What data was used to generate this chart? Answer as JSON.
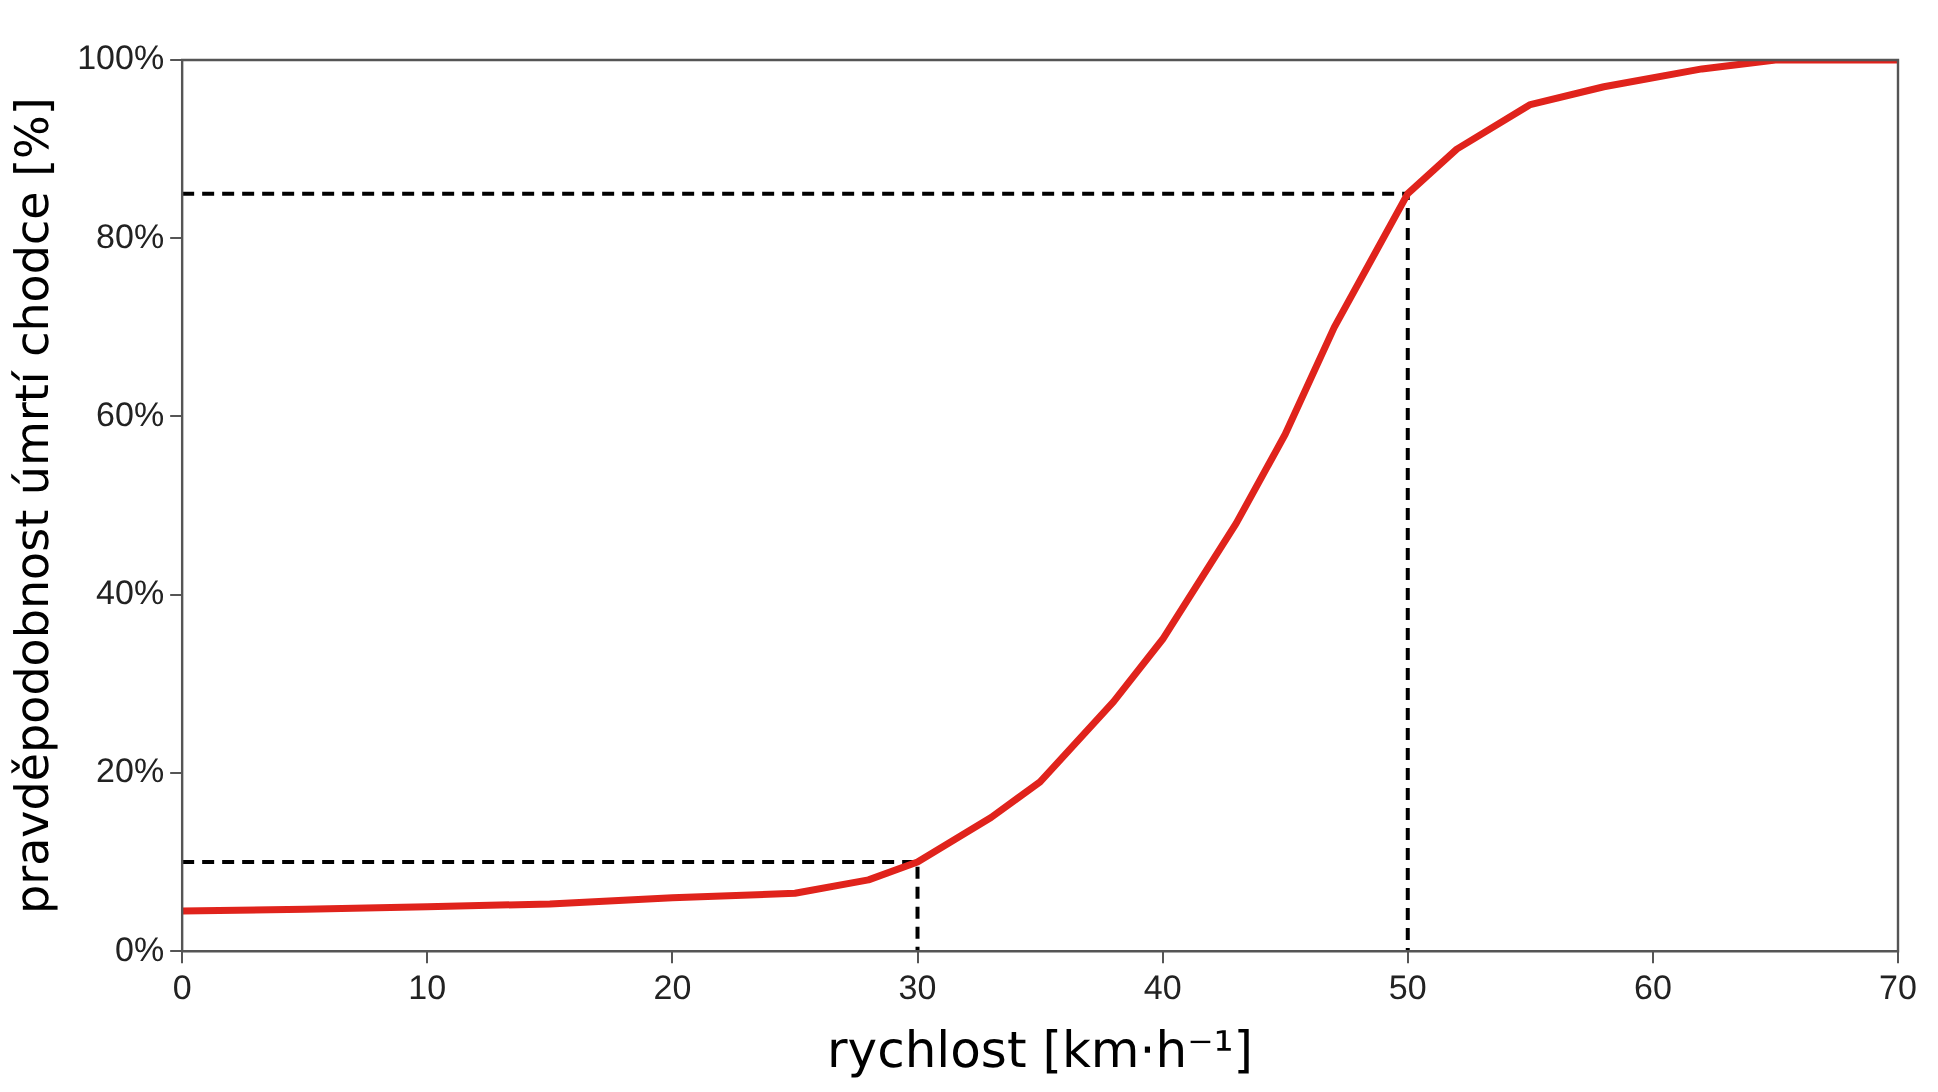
{
  "chart_data": {
    "type": "line",
    "xlabel": "rychlost [km·h⁻¹]",
    "ylabel": "pravděpodobnost úmrtí chodce [%]",
    "xlim": [
      0,
      70
    ],
    "xticks": [
      0,
      10,
      20,
      30,
      40,
      50,
      60,
      70
    ],
    "ylim": [
      0,
      100
    ],
    "yticks": [
      {
        "value": 0,
        "label": "0%"
      },
      {
        "value": 20,
        "label": "20%"
      },
      {
        "value": 40,
        "label": "40%"
      },
      {
        "value": 60,
        "label": "60%"
      },
      {
        "value": 80,
        "label": "80%"
      },
      {
        "value": 100,
        "label": "100%"
      }
    ],
    "marker": "none",
    "series": [
      {
        "color": "#e0231c",
        "line_style": "solid",
        "x": [
          0,
          5,
          10,
          15,
          20,
          25,
          28,
          30,
          33,
          35,
          38,
          40,
          43,
          45,
          47,
          50,
          52,
          55,
          58,
          62,
          65,
          70
        ],
        "values": [
          4.5,
          4.7,
          5,
          5.3,
          6,
          6.5,
          8,
          10,
          15,
          19,
          28,
          35,
          48,
          58,
          70,
          85,
          90,
          95,
          97,
          99,
          100,
          100
        ]
      },
      {
        "color": "#000000",
        "line_style": "dashed",
        "x": [
          0,
          30,
          30
        ],
        "values": [
          10,
          10,
          0
        ]
      },
      {
        "color": "#000000",
        "line_style": "dashed",
        "x": [
          0,
          50,
          50
        ],
        "values": [
          85,
          85,
          0
        ]
      }
    ]
  }
}
